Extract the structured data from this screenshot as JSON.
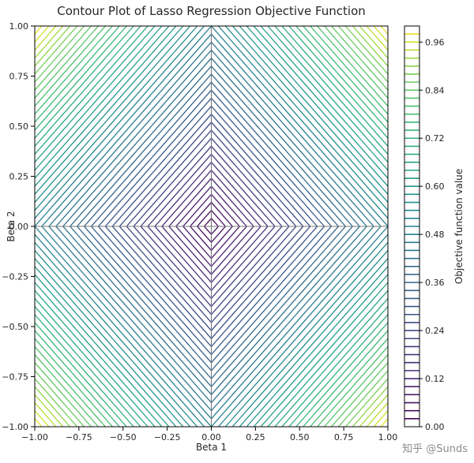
{
  "figure": {
    "watermark": "知乎 @Sunds"
  },
  "chart_data": {
    "type": "contour",
    "title": "Contour Plot of Lasso Regression Objective Function",
    "xlabel": "Beta 1",
    "ylabel": "Beta 2",
    "xlim": [
      -1.0,
      1.0
    ],
    "ylim": [
      -1.0,
      1.0
    ],
    "xtick_values": [
      -1.0,
      -0.75,
      -0.5,
      -0.25,
      0.0,
      0.25,
      0.5,
      0.75,
      1.0
    ],
    "xtick_labels": [
      "−1.00",
      "−0.75",
      "−0.50",
      "−0.25",
      "0.00",
      "0.25",
      "0.50",
      "0.75",
      "1.00"
    ],
    "ytick_values": [
      -1.0,
      -0.75,
      -0.5,
      -0.25,
      0.0,
      0.25,
      0.5,
      0.75,
      1.0
    ],
    "ytick_labels": [
      "−1.00",
      "−0.75",
      "−0.50",
      "−0.25",
      "0.00",
      "0.25",
      "0.50",
      "0.75",
      "1.00"
    ],
    "function": "objective(beta1, beta2) = 0.5 * (|beta1| + |beta2|)",
    "contour_shape": "concentric diamonds (L1 norm level sets)",
    "levels": {
      "min": 0.02,
      "max": 0.98,
      "step": 0.02
    },
    "zero_lines": true,
    "grid": false,
    "colormap": "viridis",
    "viridis_stops": [
      [
        0.0,
        "#440154"
      ],
      [
        0.125,
        "#482878"
      ],
      [
        0.25,
        "#3e4989"
      ],
      [
        0.375,
        "#31688e"
      ],
      [
        0.5,
        "#26828e"
      ],
      [
        0.625,
        "#1f9e89"
      ],
      [
        0.75,
        "#35b779"
      ],
      [
        0.875,
        "#6ece58"
      ],
      [
        0.9375,
        "#b5de2b"
      ],
      [
        1.0,
        "#fde725"
      ]
    ],
    "colorbar": {
      "label": "Objective function value",
      "range": [
        0.0,
        1.0
      ],
      "tick_values": [
        0.0,
        0.12,
        0.24,
        0.36,
        0.48,
        0.6,
        0.72,
        0.84,
        0.96
      ],
      "tick_labels": [
        "0.00",
        "0.12",
        "0.24",
        "0.36",
        "0.48",
        "0.60",
        "0.72",
        "0.84",
        "0.96"
      ],
      "position": "right"
    },
    "colors": {
      "axis": "#000000",
      "text": "#262626",
      "zero_line": "#7a7a7a",
      "watermark": "#8c8c8c",
      "background": "#ffffff"
    }
  }
}
